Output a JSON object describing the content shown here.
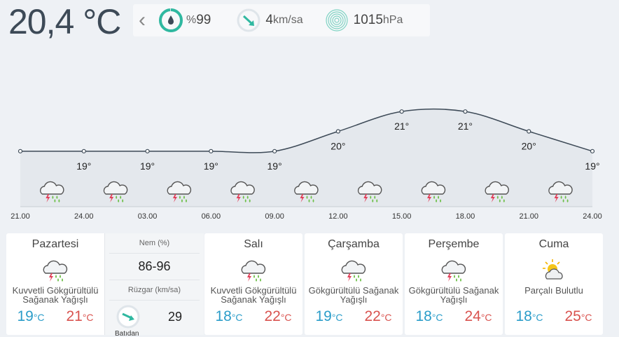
{
  "current": {
    "temperature": "20,4 °C",
    "humidity_prefix": "%",
    "humidity_value": "99",
    "wind_value": "4",
    "wind_unit": "km/sa",
    "pressure_value": "1015",
    "pressure_unit": "hPa"
  },
  "icons": {
    "back": "chevron-left-icon",
    "humidity": "droplet-icon",
    "wind": "wind-arrow-icon",
    "pressure": "pressure-rings-icon",
    "storm": "thunderstorm-rain-icon",
    "partly_cloudy": "partly-cloudy-icon"
  },
  "colors": {
    "accent": "#2fb8a0",
    "min_temp": "#2b9dc9",
    "max_temp": "#d9534f",
    "line": "#3d4a57"
  },
  "chart_data": {
    "type": "line",
    "x": [
      "21.00",
      "24.00",
      "03.00",
      "06.00",
      "09.00",
      "12.00",
      "15.00",
      "18.00",
      "21.00",
      "24.00"
    ],
    "series": [
      {
        "values": [
          19,
          19,
          19,
          19,
          19,
          20,
          21,
          21,
          20,
          19
        ]
      }
    ],
    "point_labels": [
      "",
      "19°",
      "19°",
      "19°",
      "19°",
      "20°",
      "21°",
      "21°",
      "20°",
      "19°"
    ],
    "ylim": [
      18.5,
      21.5
    ],
    "grid": false
  },
  "days": [
    {
      "name": "Pazartesi",
      "desc_line1": "Kuvvetli Gökgürültülü",
      "desc_line2": "Sağanak Yağışlı",
      "min": "19",
      "max": "21",
      "unit": "°C",
      "icon": "thunderstorm-rain-icon"
    },
    {
      "name": "Salı",
      "desc_line1": "Kuvvetli Gökgürültülü",
      "desc_line2": "Sağanak Yağışlı",
      "min": "18",
      "max": "22",
      "unit": "°C",
      "icon": "thunderstorm-rain-icon"
    },
    {
      "name": "Çarşamba",
      "desc_line1": "Gökgürültülü Sağanak",
      "desc_line2": "Yağışlı",
      "min": "19",
      "max": "22",
      "unit": "°C",
      "icon": "thunderstorm-rain-icon"
    },
    {
      "name": "Perşembe",
      "desc_line1": "Gökgürültülü Sağanak",
      "desc_line2": "Yağışlı",
      "min": "18",
      "max": "24",
      "unit": "°C",
      "icon": "thunderstorm-rain-icon"
    },
    {
      "name": "Cuma",
      "desc_line1": "Parçalı Bulutlu",
      "desc_line2": "",
      "min": "18",
      "max": "25",
      "unit": "°C",
      "icon": "partly-cloudy-icon"
    }
  ],
  "today_detail": {
    "humidity_label": "Nem (%)",
    "humidity_range": "86-96",
    "wind_label": "Rüzgar (km/sa)",
    "wind_speed": "29",
    "wind_direction": "Batıdan"
  }
}
